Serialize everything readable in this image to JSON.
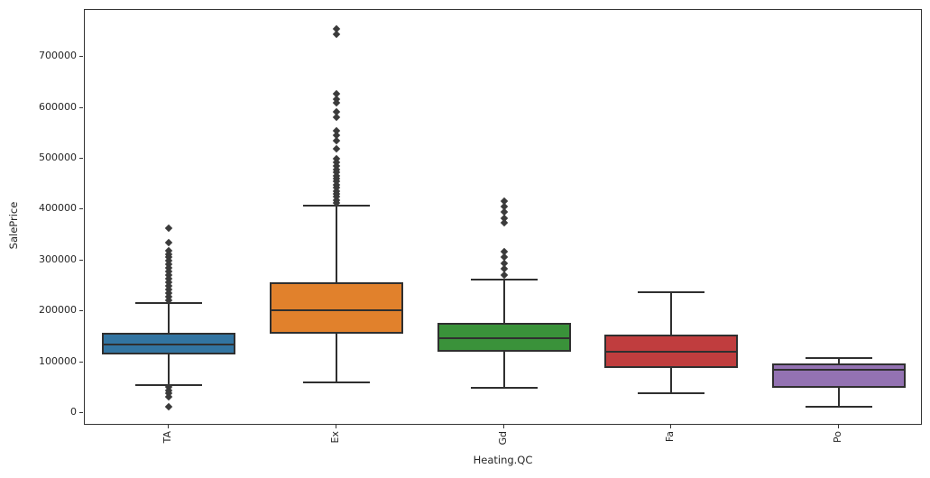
{
  "chart_data": {
    "type": "box",
    "title": "",
    "xlabel": "Heating.QC",
    "ylabel": "SalePrice",
    "categories": [
      "TA",
      "Ex",
      "Gd",
      "Fa",
      "Po"
    ],
    "yticks": [
      0,
      100000,
      200000,
      300000,
      400000,
      500000,
      600000,
      700000
    ],
    "ylim": [
      -25000,
      793000
    ],
    "grid": false,
    "legend_position": "none",
    "edge_color": "#2f2f2f",
    "outlier_color": "#3b3b3b",
    "box_colors": [
      "#3274a1",
      "#e1812c",
      "#3a923a",
      "#c03d3e",
      "#9372b2"
    ],
    "series": [
      {
        "category": "TA",
        "color": "#3274a1",
        "stats": {
          "whisker_low": 55000,
          "q1": 115000,
          "median": 134000,
          "q3": 157000,
          "whisker_high": 216000
        },
        "outliers": [
          364000,
          336000,
          320000,
          313000,
          306000,
          299000,
          292000,
          285000,
          278000,
          271000,
          264000,
          257000,
          250000,
          243000,
          236000,
          229000,
          222000,
          51000,
          45000,
          38000,
          31000,
          13000
        ]
      },
      {
        "category": "Ex",
        "color": "#e1812c",
        "stats": {
          "whisker_low": 60000,
          "q1": 156000,
          "median": 202000,
          "q3": 258000,
          "whisker_high": 408000
        },
        "outliers": [
          755000,
          745000,
          628000,
          618000,
          610000,
          592000,
          582000,
          556000,
          546000,
          536000,
          520000,
          500000,
          493000,
          486000,
          479000,
          473000,
          467000,
          461000,
          455000,
          449000,
          443000,
          437000,
          431000,
          425000,
          419000,
          413000
        ]
      },
      {
        "category": "Gd",
        "color": "#3a923a",
        "stats": {
          "whisker_low": 50000,
          "q1": 121000,
          "median": 147000,
          "q3": 178000,
          "whisker_high": 262000
        },
        "outliers": [
          417000,
          406000,
          395000,
          384000,
          374000,
          318000,
          306000,
          295000,
          284000,
          272000
        ]
      },
      {
        "category": "Fa",
        "color": "#c03d3e",
        "stats": {
          "whisker_low": 39000,
          "q1": 88000,
          "median": 121000,
          "q3": 154000,
          "whisker_high": 237000
        },
        "outliers": []
      },
      {
        "category": "Po",
        "color": "#9372b2",
        "stats": {
          "whisker_low": 12500,
          "q1": 50000,
          "median": 85000,
          "q3": 98000,
          "whisker_high": 108000
        },
        "outliers": []
      }
    ]
  }
}
